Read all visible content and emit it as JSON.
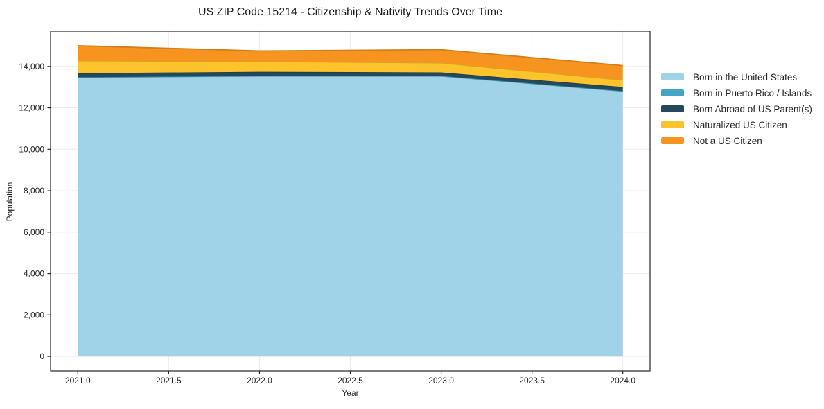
{
  "title": "US ZIP Code 15214 - Citizenship & Nativity Trends Over Time",
  "chart_data": {
    "type": "area",
    "stacked": true,
    "title": "US ZIP Code 15214 - Citizenship & Nativity Trends Over Time",
    "xlabel": "Year",
    "ylabel": "Population",
    "x": [
      2021,
      2022,
      2023,
      2024
    ],
    "series": [
      {
        "name": "Born in the United States",
        "color": "#a0d3e8",
        "values": [
          13470,
          13530,
          13530,
          12800
        ]
      },
      {
        "name": "Born in Puerto Rico / Islands",
        "color": "#41a6c3",
        "values": [
          10,
          10,
          10,
          10
        ]
      },
      {
        "name": "Born Abroad of US Parent(s)",
        "color": "#24485c",
        "values": [
          190,
          200,
          170,
          200
        ]
      },
      {
        "name": "Naturalized US Citizen",
        "color": "#fcc32b",
        "values": [
          600,
          500,
          460,
          330
        ]
      },
      {
        "name": "Not a US Citizen",
        "color": "#f7941f",
        "values": [
          730,
          510,
          640,
          700
        ]
      }
    ],
    "xlim": [
      2020.85,
      2024.15
    ],
    "ylim": [
      -700,
      15700
    ],
    "xticks": {
      "values": [
        2021.0,
        2021.5,
        2022.0,
        2022.5,
        2023.0,
        2023.5,
        2024.0
      ],
      "labels": [
        "2021.0",
        "2021.5",
        "2022.0",
        "2022.5",
        "2023.0",
        "2023.5",
        "2024.0"
      ]
    },
    "yticks": {
      "values": [
        0,
        2000,
        4000,
        6000,
        8000,
        10000,
        12000,
        14000
      ],
      "labels": [
        "0",
        "2,000",
        "4,000",
        "6,000",
        "8,000",
        "10,000",
        "12,000",
        "14,000"
      ]
    },
    "grid": true,
    "grid_color": "#ececec",
    "spine_color": "#262626",
    "tick_color": "#262626",
    "text_color": "#262626",
    "plot_bg": "#ffffff",
    "legend_position": "right-outside"
  }
}
